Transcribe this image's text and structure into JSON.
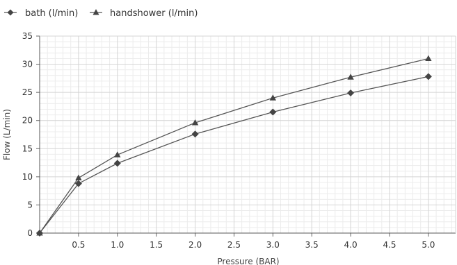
{
  "chart_data": {
    "type": "line",
    "xlabel": "Pressure (BAR)",
    "ylabel": "Flow (L/min)",
    "xlim": [
      0,
      5.35
    ],
    "ylim": [
      0,
      35
    ],
    "x_ticks": [
      0.5,
      1.0,
      1.5,
      2.0,
      2.5,
      3.0,
      3.5,
      4.0,
      4.5,
      5.0
    ],
    "x_tick_labels": [
      "0.5",
      "1.0",
      "1.5",
      "2.0",
      "2.5",
      "3.0",
      "3.5",
      "4.0",
      "4.5",
      "5.0"
    ],
    "y_ticks": [
      0,
      5,
      10,
      15,
      20,
      25,
      30,
      35
    ],
    "y_tick_labels": [
      "0",
      "5",
      "10",
      "15",
      "20",
      "25",
      "30",
      "35"
    ],
    "grid": true,
    "legend_position": "top-left",
    "series": [
      {
        "name": "bath (l/min)",
        "marker": "diamond",
        "color": "#555555",
        "x": [
          0,
          0.5,
          1.0,
          2.0,
          3.0,
          4.0,
          5.0
        ],
        "y": [
          0,
          8.8,
          12.4,
          17.6,
          21.5,
          24.9,
          27.8
        ]
      },
      {
        "name": "handshower (l/min)",
        "marker": "triangle",
        "color": "#555555",
        "x": [
          0,
          0.5,
          1.0,
          2.0,
          3.0,
          4.0,
          5.0
        ],
        "y": [
          0,
          9.8,
          13.9,
          19.6,
          24.0,
          27.7,
          31.0
        ]
      }
    ]
  }
}
